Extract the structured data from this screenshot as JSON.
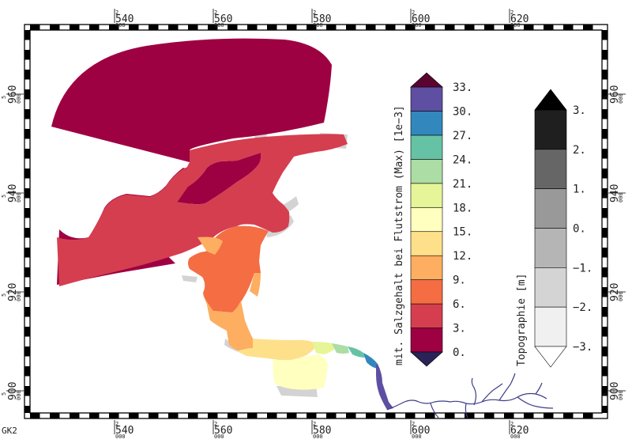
{
  "coordinate_system": "GK2",
  "axes": {
    "x_ticks": [
      {
        "prefix": "2",
        "label": "540",
        "suffix": "000",
        "value": 2540000
      },
      {
        "prefix": "2",
        "label": "560",
        "suffix": "000",
        "value": 2560000
      },
      {
        "prefix": "2",
        "label": "580",
        "suffix": "000",
        "value": 2580000
      },
      {
        "prefix": "2",
        "label": "600",
        "suffix": "000",
        "value": 2600000
      },
      {
        "prefix": "2",
        "label": "620",
        "suffix": "000",
        "value": 2620000
      }
    ],
    "y_ticks": [
      {
        "prefix": "5",
        "label": "960",
        "suffix": "000",
        "value": 5960000
      },
      {
        "prefix": "5",
        "label": "940",
        "suffix": "000",
        "value": 5940000
      },
      {
        "prefix": "5",
        "label": "920",
        "suffix": "000",
        "value": 5920000
      },
      {
        "prefix": "5",
        "label": "900",
        "suffix": "000",
        "value": 5900000
      }
    ]
  },
  "salinity_colorbar": {
    "title": "mit. Salzgehalt bei Flutstrom (Max) [1e−3]",
    "labels": [
      "33.",
      "30.",
      "27.",
      "24.",
      "21.",
      "18.",
      "15.",
      "12.",
      "9.",
      "6.",
      "3.",
      "0."
    ],
    "colors": [
      "#9e0142",
      "#d53e4f",
      "#f46d43",
      "#fdae61",
      "#fee08b",
      "#ffffbf",
      "#e6f598",
      "#abdda4",
      "#66c2a5",
      "#3288bd",
      "#5e4fa2"
    ],
    "over_color": "#5a0330",
    "under_color": "#2b2257"
  },
  "topography_colorbar": {
    "title": "Topographie [m]",
    "labels": [
      "3.",
      "2.",
      "1.",
      "0.",
      "−1.",
      "−2.",
      "−3."
    ],
    "colors": [
      "#1f1f1f",
      "#666666",
      "#999999",
      "#b5b5b5",
      "#d4d4d4",
      "#f0f0f0"
    ],
    "over_color": "#000000",
    "under_color": "#ffffff"
  },
  "map_colors": {
    "dry_land": "#d3d3d3",
    "tributary": "#3d3d8a"
  }
}
